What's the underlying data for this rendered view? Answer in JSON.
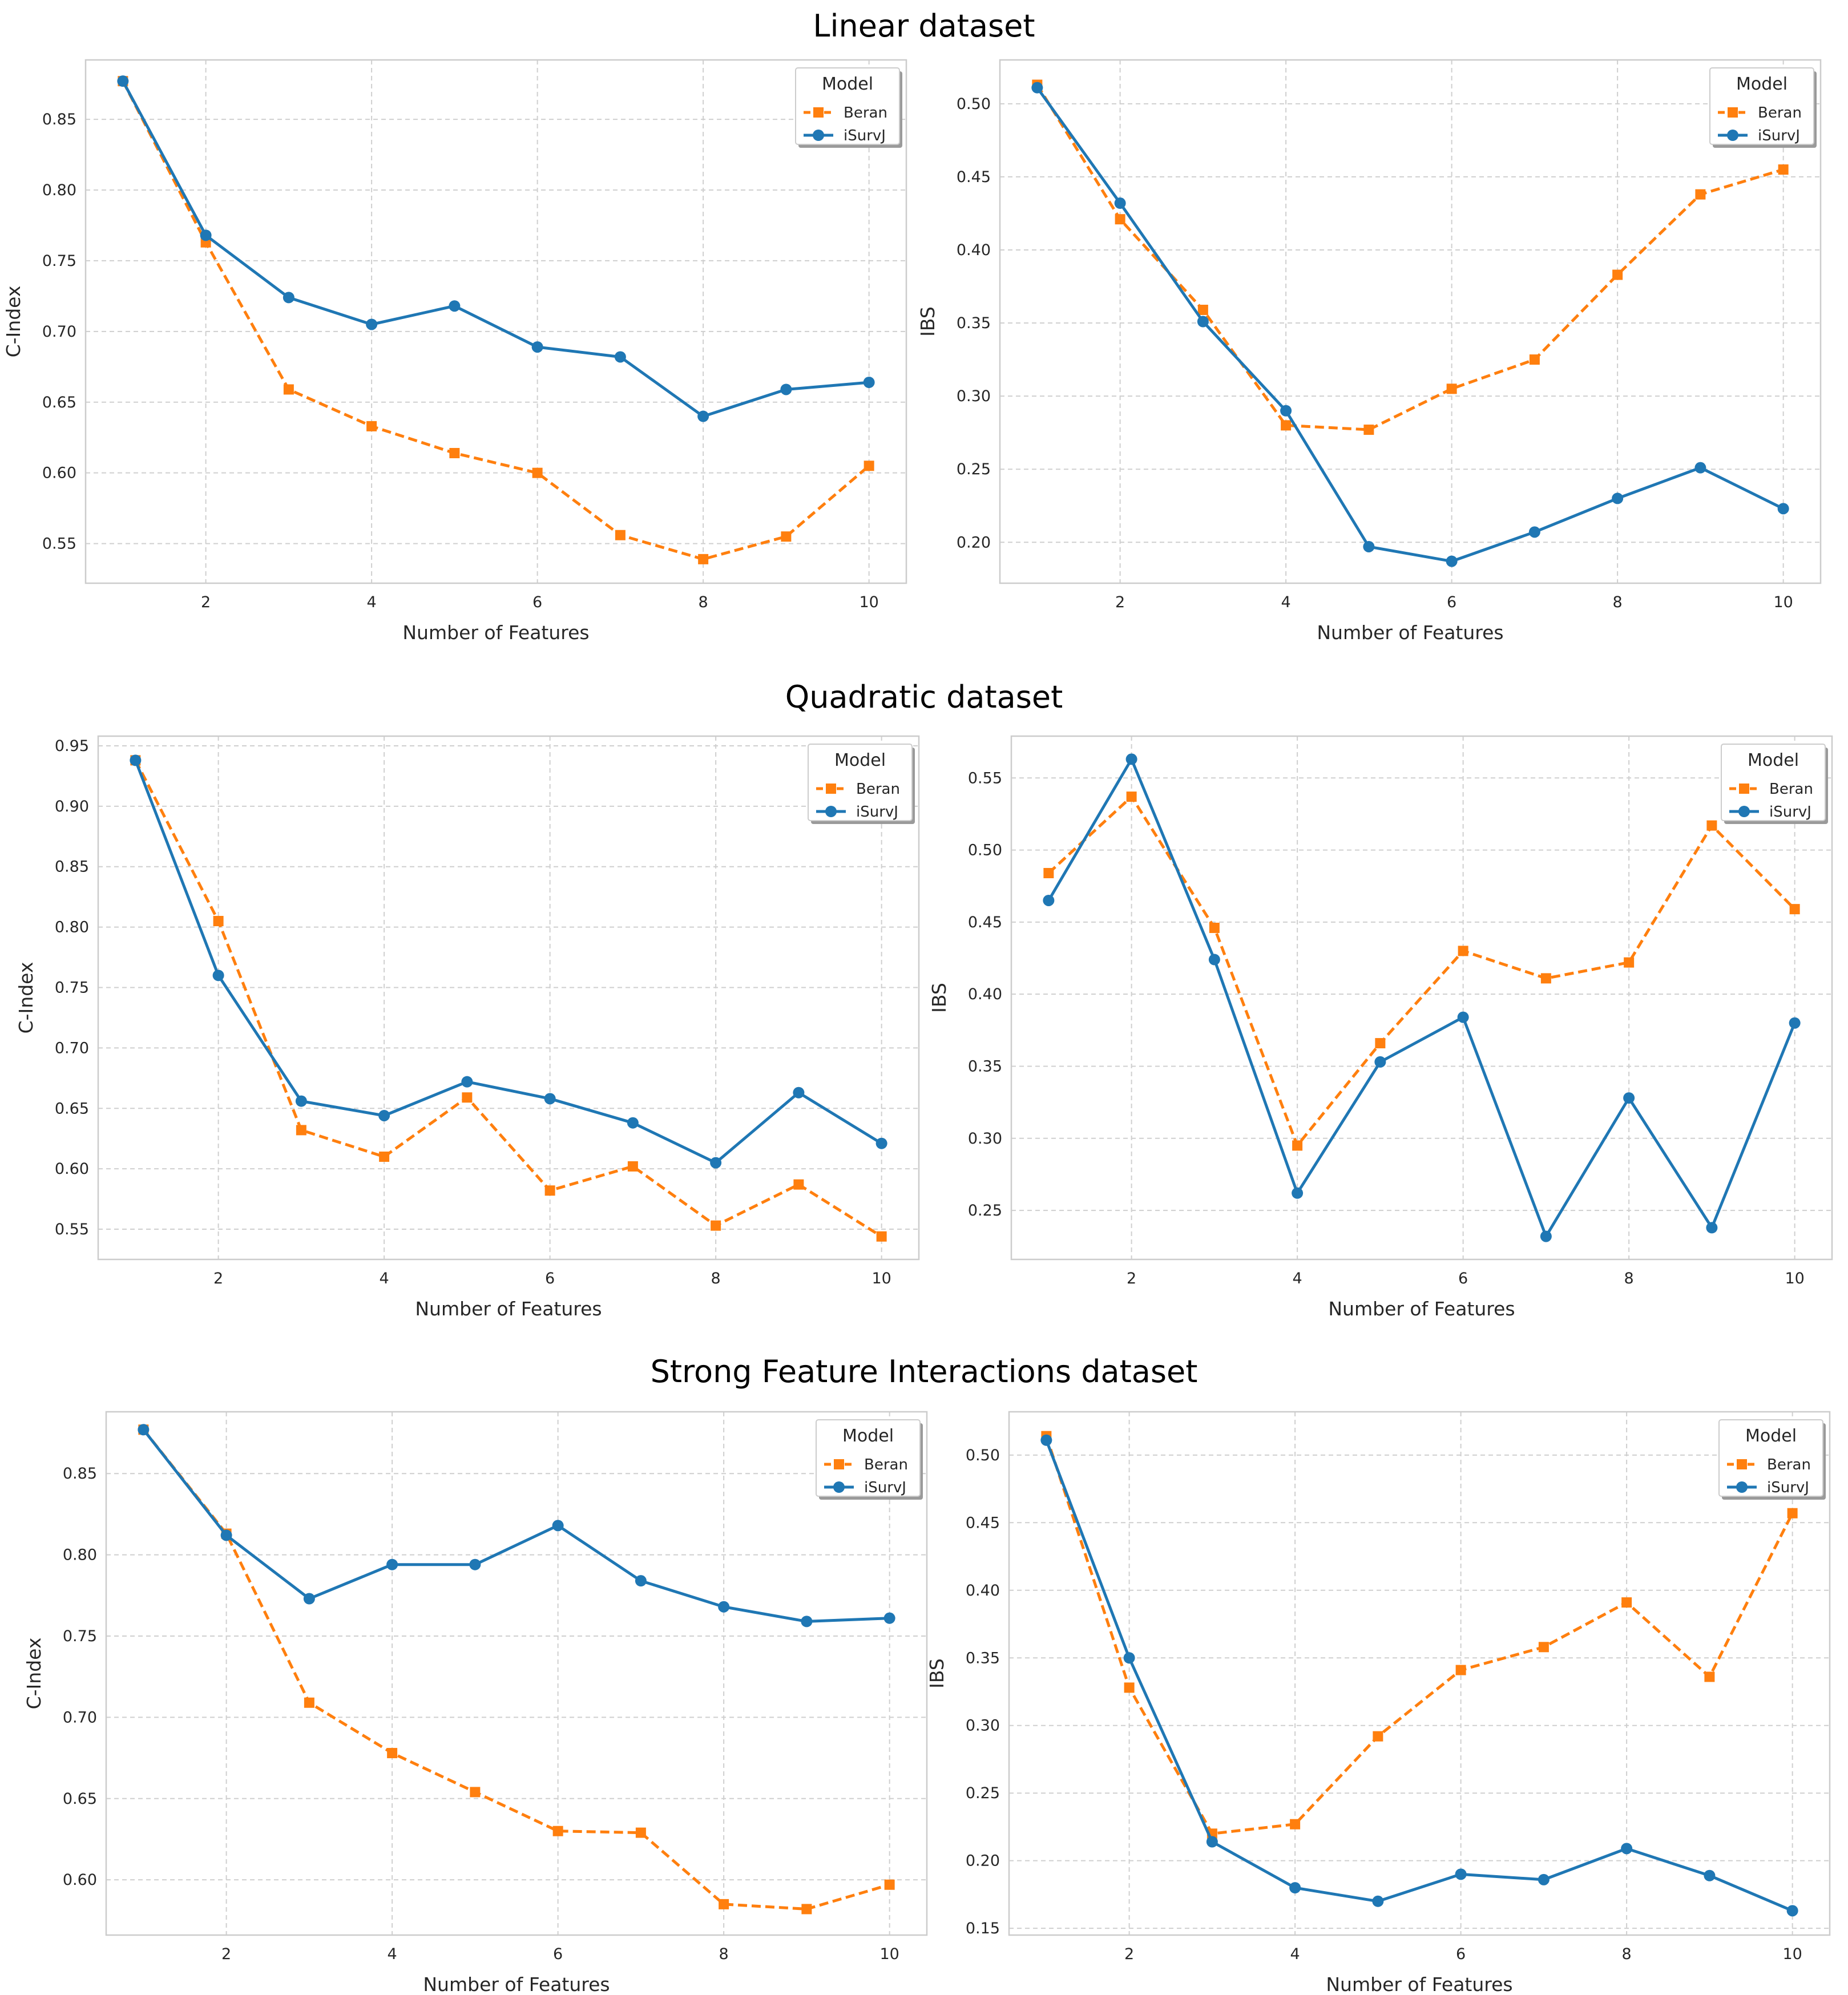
{
  "rows": [
    {
      "title": "Linear dataset"
    },
    {
      "title": "Quadratic dataset"
    },
    {
      "title": "Strong Feature Interactions dataset"
    }
  ],
  "legend": {
    "title": "Model"
  },
  "colors": {
    "Beran": "#ff7f0e",
    "iSurvJ": "#1f77b4"
  },
  "chart_data": [
    {
      "type": "line",
      "row": 0,
      "col": 0,
      "xlabel": "Number of Features",
      "ylabel": "C-Index",
      "xlim": [
        0.55,
        10.45
      ],
      "ylim": [
        0.522,
        0.892
      ],
      "xticks": [
        2,
        4,
        6,
        8,
        10
      ],
      "yticks": [
        0.55,
        0.6,
        0.65,
        0.7,
        0.75,
        0.8,
        0.85
      ],
      "x": [
        1,
        2,
        3,
        4,
        5,
        6,
        7,
        8,
        9,
        10
      ],
      "series": [
        {
          "name": "Beran",
          "values": [
            0.877,
            0.763,
            0.659,
            0.633,
            0.614,
            0.6,
            0.556,
            0.539,
            0.555,
            0.605
          ]
        },
        {
          "name": "iSurvJ",
          "values": [
            0.877,
            0.768,
            0.724,
            0.705,
            0.718,
            0.689,
            0.682,
            0.64,
            0.659,
            0.664
          ]
        }
      ]
    },
    {
      "type": "line",
      "row": 0,
      "col": 1,
      "xlabel": "Number of Features",
      "ylabel": "IBS",
      "xlim": [
        0.55,
        10.45
      ],
      "ylim": [
        0.172,
        0.53
      ],
      "xticks": [
        2,
        4,
        6,
        8,
        10
      ],
      "yticks": [
        0.2,
        0.25,
        0.3,
        0.35,
        0.4,
        0.45,
        0.5
      ],
      "x": [
        1,
        2,
        3,
        4,
        5,
        6,
        7,
        8,
        9,
        10
      ],
      "series": [
        {
          "name": "Beran",
          "values": [
            0.513,
            0.421,
            0.359,
            0.28,
            0.277,
            0.305,
            0.325,
            0.383,
            0.438,
            0.455
          ]
        },
        {
          "name": "iSurvJ",
          "values": [
            0.511,
            0.432,
            0.351,
            0.29,
            0.197,
            0.187,
            0.207,
            0.23,
            0.251,
            0.223
          ]
        }
      ]
    },
    {
      "type": "line",
      "row": 1,
      "col": 0,
      "xlabel": "Number of Features",
      "ylabel": "C-Index",
      "xlim": [
        0.55,
        10.45
      ],
      "ylim": [
        0.525,
        0.958
      ],
      "xticks": [
        2,
        4,
        6,
        8,
        10
      ],
      "yticks": [
        0.55,
        0.6,
        0.65,
        0.7,
        0.75,
        0.8,
        0.85,
        0.9,
        0.95
      ],
      "x": [
        1,
        2,
        3,
        4,
        5,
        6,
        7,
        8,
        9,
        10
      ],
      "series": [
        {
          "name": "Beran",
          "values": [
            0.938,
            0.805,
            0.632,
            0.61,
            0.659,
            0.582,
            0.602,
            0.553,
            0.587,
            0.544
          ]
        },
        {
          "name": "iSurvJ",
          "values": [
            0.938,
            0.76,
            0.656,
            0.644,
            0.672,
            0.658,
            0.638,
            0.605,
            0.663,
            0.621
          ]
        }
      ]
    },
    {
      "type": "line",
      "row": 1,
      "col": 1,
      "xlabel": "Number of Features",
      "ylabel": "IBS",
      "xlim": [
        0.55,
        10.45
      ],
      "ylim": [
        0.216,
        0.579
      ],
      "xticks": [
        2,
        4,
        6,
        8,
        10
      ],
      "yticks": [
        0.25,
        0.3,
        0.35,
        0.4,
        0.45,
        0.5,
        0.55
      ],
      "x": [
        1,
        2,
        3,
        4,
        5,
        6,
        7,
        8,
        9,
        10
      ],
      "series": [
        {
          "name": "Beran",
          "values": [
            0.484,
            0.537,
            0.446,
            0.295,
            0.366,
            0.43,
            0.411,
            0.422,
            0.517,
            0.459
          ]
        },
        {
          "name": "iSurvJ",
          "values": [
            0.465,
            0.563,
            0.424,
            0.262,
            0.353,
            0.384,
            0.232,
            0.328,
            0.238,
            0.38
          ]
        }
      ]
    },
    {
      "type": "line",
      "row": 2,
      "col": 0,
      "xlabel": "Number of Features",
      "ylabel": "C-Index",
      "xlim": [
        0.55,
        10.45
      ],
      "ylim": [
        0.566,
        0.888
      ],
      "xticks": [
        2,
        4,
        6,
        8,
        10
      ],
      "yticks": [
        0.6,
        0.65,
        0.7,
        0.75,
        0.8,
        0.85
      ],
      "x": [
        1,
        2,
        3,
        4,
        5,
        6,
        7,
        8,
        9,
        10
      ],
      "series": [
        {
          "name": "Beran",
          "values": [
            0.877,
            0.813,
            0.709,
            0.678,
            0.654,
            0.63,
            0.629,
            0.585,
            0.582,
            0.597
          ]
        },
        {
          "name": "iSurvJ",
          "values": [
            0.877,
            0.812,
            0.773,
            0.794,
            0.794,
            0.818,
            0.784,
            0.768,
            0.759,
            0.761
          ]
        }
      ]
    },
    {
      "type": "line",
      "row": 2,
      "col": 1,
      "xlabel": "Number of Features",
      "ylabel": "IBS",
      "xlim": [
        0.55,
        10.45
      ],
      "ylim": [
        0.145,
        0.532
      ],
      "xticks": [
        2,
        4,
        6,
        8,
        10
      ],
      "yticks": [
        0.15,
        0.2,
        0.25,
        0.3,
        0.35,
        0.4,
        0.45,
        0.5
      ],
      "x": [
        1,
        2,
        3,
        4,
        5,
        6,
        7,
        8,
        9,
        10
      ],
      "series": [
        {
          "name": "Beran",
          "values": [
            0.514,
            0.328,
            0.22,
            0.227,
            0.292,
            0.341,
            0.358,
            0.391,
            0.336,
            0.457
          ]
        },
        {
          "name": "iSurvJ",
          "values": [
            0.511,
            0.35,
            0.214,
            0.18,
            0.17,
            0.19,
            0.186,
            0.209,
            0.189,
            0.163
          ]
        }
      ]
    }
  ]
}
